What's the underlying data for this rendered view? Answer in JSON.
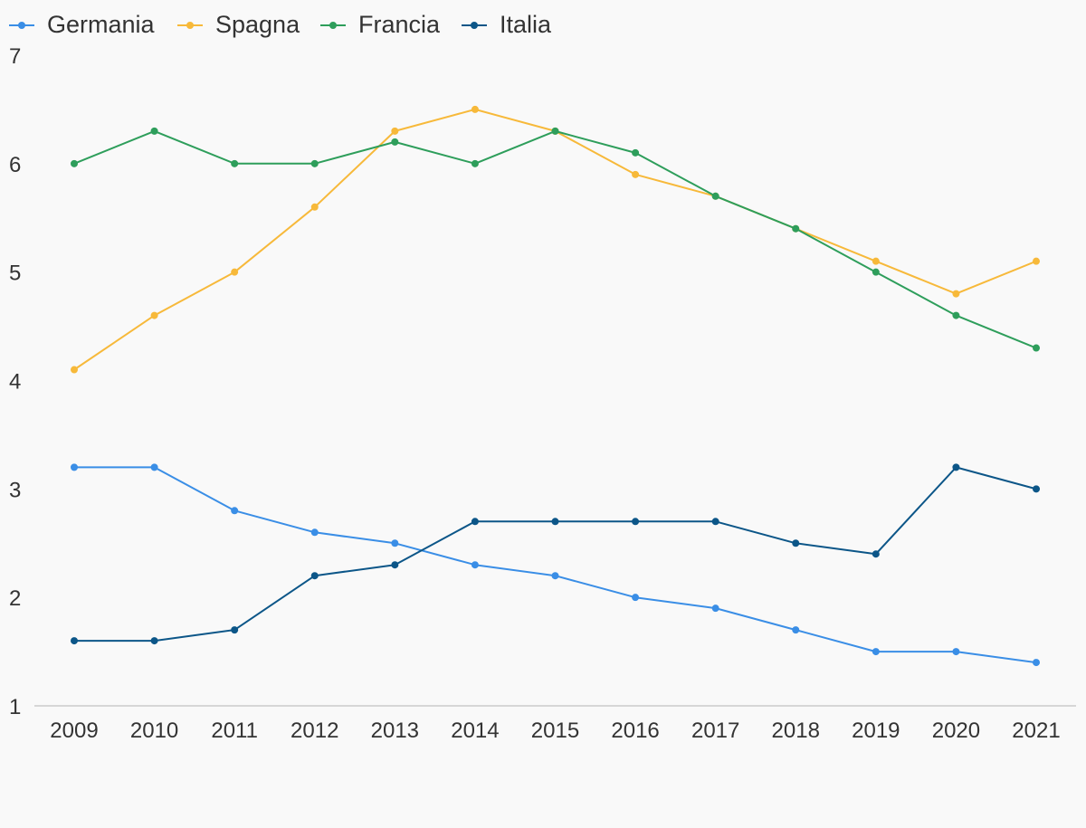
{
  "chart_data": {
    "type": "line",
    "title": "",
    "xlabel": "",
    "ylabel": "",
    "x": [
      "2009",
      "2010",
      "2011",
      "2012",
      "2013",
      "2014",
      "2015",
      "2016",
      "2017",
      "2018",
      "2019",
      "2020",
      "2021"
    ],
    "ylim": [
      1,
      7
    ],
    "yticks": [
      "1",
      "2",
      "3",
      "4",
      "5",
      "6",
      "7"
    ],
    "grid": false,
    "legend_position": "top-left",
    "series": [
      {
        "name": "Germania",
        "color": "#3a8ee6",
        "values": [
          3.2,
          3.2,
          2.8,
          2.6,
          2.5,
          2.3,
          2.2,
          2.0,
          1.9,
          1.7,
          1.5,
          1.5,
          1.4
        ]
      },
      {
        "name": "Spagna",
        "color": "#f7b93a",
        "values": [
          4.1,
          4.6,
          5.0,
          5.6,
          6.3,
          6.5,
          6.3,
          5.9,
          5.7,
          5.4,
          5.1,
          4.8,
          5.1
        ]
      },
      {
        "name": "Francia",
        "color": "#2e9e5b",
        "values": [
          6.0,
          6.3,
          6.0,
          6.0,
          6.2,
          6.0,
          6.3,
          6.1,
          5.7,
          5.4,
          5.0,
          4.6,
          4.3
        ]
      },
      {
        "name": "Italia",
        "color": "#0c5688",
        "values": [
          1.6,
          1.6,
          1.7,
          2.2,
          2.3,
          2.7,
          2.7,
          2.7,
          2.7,
          2.5,
          2.4,
          3.2,
          3.0
        ]
      }
    ]
  }
}
